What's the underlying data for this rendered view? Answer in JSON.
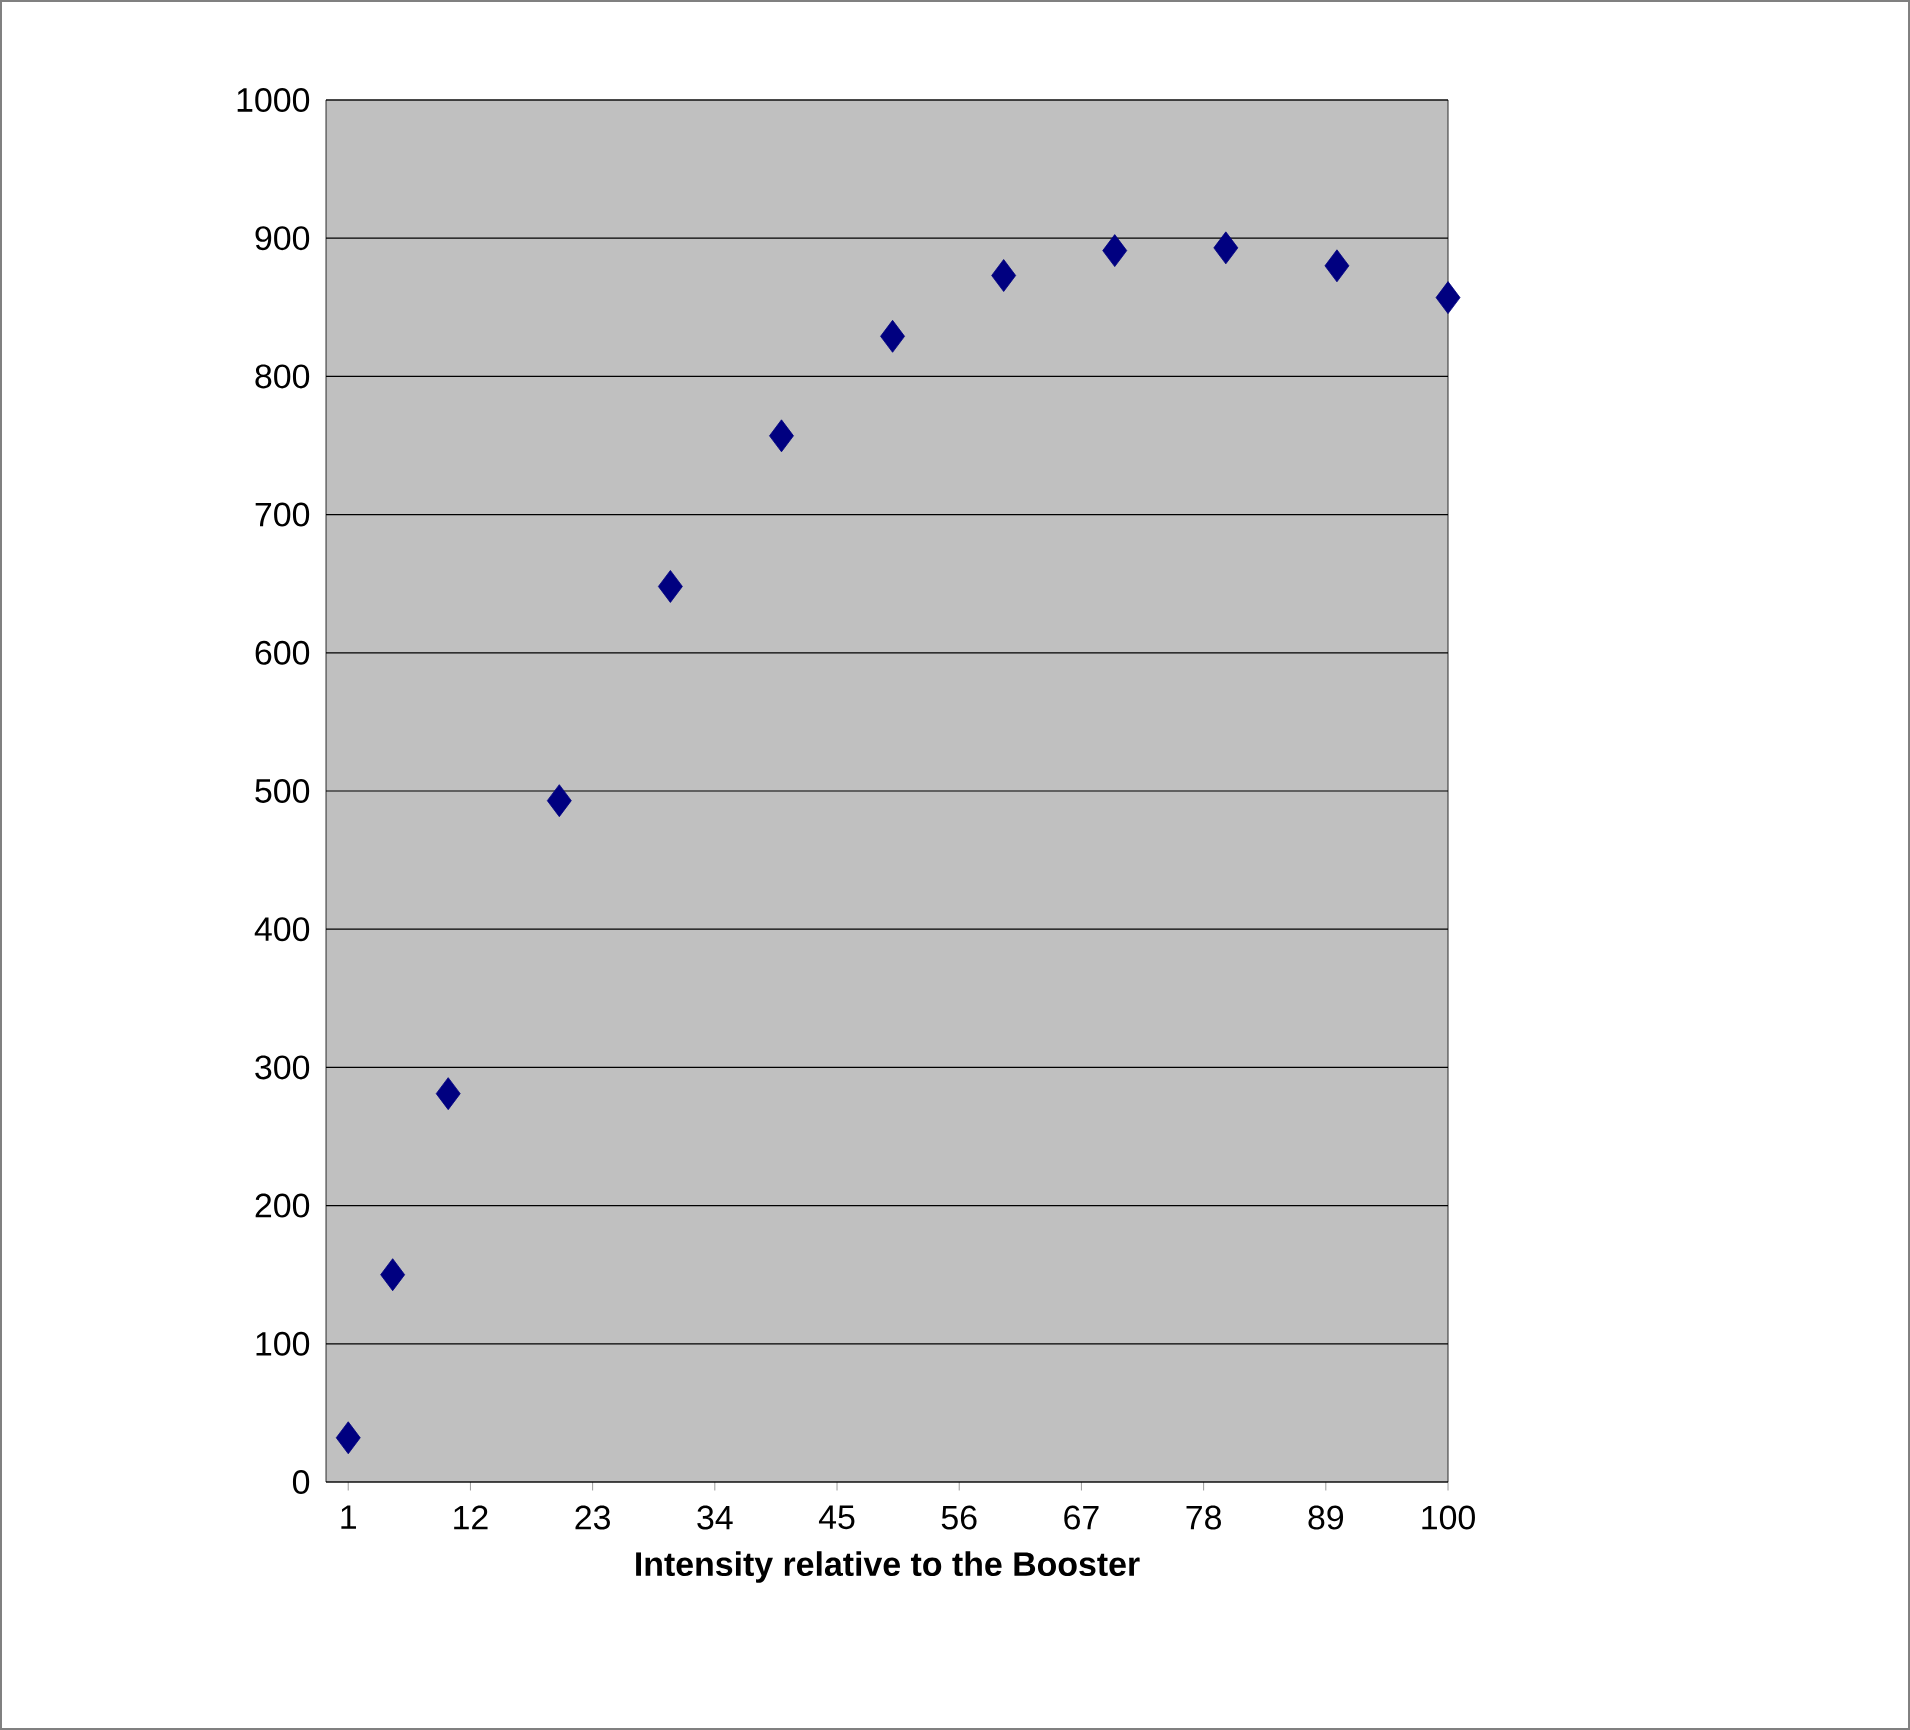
{
  "chart_data": {
    "type": "scatter",
    "xlabel": "Intensity relative to the Booster",
    "x": [
      1,
      5,
      10,
      20,
      30,
      40,
      50,
      60,
      70,
      80,
      90,
      100
    ],
    "series": [
      {
        "color": "#000080",
        "values": [
          32,
          150,
          281,
          493,
          648,
          757,
          829,
          873,
          891,
          893,
          880,
          857
        ]
      }
    ],
    "xlim": [
      -1,
      100
    ],
    "xticks": [
      1,
      12,
      23,
      34,
      45,
      56,
      67,
      78,
      89,
      100
    ],
    "ylim": [
      0,
      1000
    ],
    "yticks": [
      0,
      100,
      200,
      300,
      400,
      500,
      600,
      700,
      800,
      900,
      1000
    ],
    "grid": "y",
    "marker": "diamond"
  }
}
